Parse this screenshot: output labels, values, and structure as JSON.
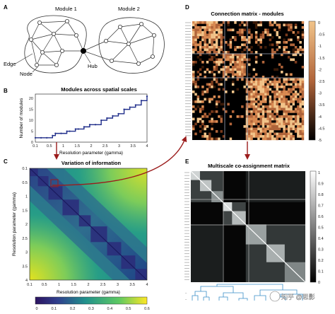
{
  "panels": {
    "a": {
      "letter": "A",
      "module1": "Module 1",
      "module2": "Module 2",
      "edge": "Edge",
      "node": "Node",
      "hub": "Hub"
    },
    "b": {
      "letter": "B",
      "title": "Modules across spatial scales",
      "ylabel": "Number of modules",
      "xlabel": "Resolution parameter (gamma)"
    },
    "c": {
      "letter": "C",
      "title": "Variation of information",
      "ylabel": "Resolution parameter (gamma)",
      "xlabel": "Resolution parameter (gamma)"
    },
    "d": {
      "letter": "D",
      "title": "Connection matrix - modules"
    },
    "e": {
      "letter": "E",
      "title": "Multiscale co-assignment matrix"
    }
  },
  "watermark": "知乎 @思影",
  "colors": {
    "arrow": "#9b1c1c",
    "steps": "#1f2d8a",
    "pale": "#f0c9a3"
  },
  "chart_data": [
    {
      "type": "scatter",
      "title": "Modules across spatial scales",
      "xlabel": "Resolution parameter (gamma)",
      "ylabel": "Number of modules",
      "xlim": [
        0.1,
        4
      ],
      "ylim": [
        0,
        22
      ],
      "x_ticks": [
        "0.1",
        "0.5",
        "1",
        "1.5",
        "2",
        "2.5",
        "3",
        "3.5",
        "4"
      ],
      "y_ticks": [
        "0",
        "5",
        "10",
        "15",
        "20"
      ],
      "points": [
        [
          0.1,
          2
        ],
        [
          0.3,
          2
        ],
        [
          0.5,
          2
        ],
        [
          0.7,
          3
        ],
        [
          0.8,
          4
        ],
        [
          1.0,
          4
        ],
        [
          1.2,
          5
        ],
        [
          1.3,
          5
        ],
        [
          1.5,
          6
        ],
        [
          1.6,
          6
        ],
        [
          1.8,
          7
        ],
        [
          2.0,
          8
        ],
        [
          2.2,
          8
        ],
        [
          2.4,
          10
        ],
        [
          2.6,
          11
        ],
        [
          2.8,
          12
        ],
        [
          3.0,
          13
        ],
        [
          3.2,
          15
        ],
        [
          3.4,
          16
        ],
        [
          3.6,
          17
        ],
        [
          3.8,
          19
        ],
        [
          4.0,
          21
        ]
      ]
    },
    {
      "type": "heatmap",
      "title": "Variation of information",
      "xlabel": "Resolution parameter (gamma)",
      "ylabel": "Resolution parameter (gamma)",
      "x_ticks": [
        "0.1",
        "0.5",
        "1",
        "1.5",
        "2",
        "2.5",
        "3",
        "3.5",
        "4"
      ],
      "y_ticks": [
        "0.1",
        "0.5",
        "1",
        "1.5",
        "2",
        "2.5",
        "3",
        "3.5",
        "4"
      ],
      "colorbar_ticks": [
        "0",
        "0.1",
        "0.2",
        "0.3",
        "0.4",
        "0.5",
        "0.6"
      ],
      "colorbar_range": [
        0,
        0.6
      ]
    },
    {
      "type": "heatmap",
      "title": "Connection matrix - modules",
      "colorbar_ticks": [
        "0",
        "-0.5",
        "-1",
        "-1.5",
        "-2",
        "-2.5",
        "-3",
        "-3.5",
        "-4",
        "-4.5",
        "-5"
      ],
      "colorbar_range": [
        0,
        -5
      ]
    },
    {
      "type": "heatmap",
      "title": "Multiscale co-assignment matrix",
      "colorbar_ticks": [
        "1",
        "0.9",
        "0.8",
        "0.7",
        "0.6",
        "0.5",
        "0.4",
        "0.3",
        "0.2",
        "0.1",
        "0"
      ],
      "colorbar_range": [
        1,
        0
      ]
    }
  ]
}
